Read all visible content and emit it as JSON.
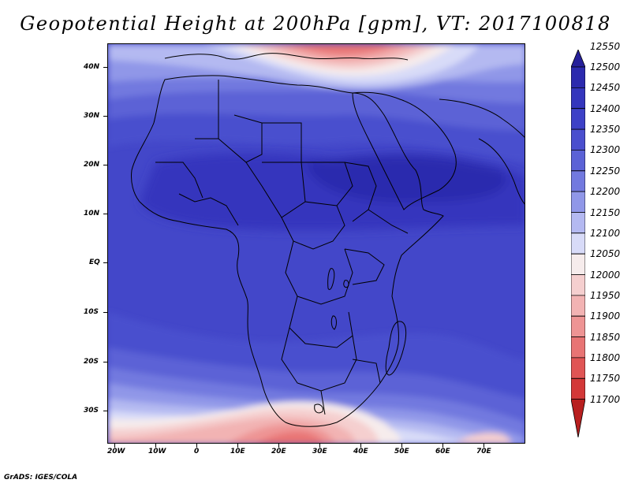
{
  "title": "Geopotential Height at 200hPa [gpm], VT: 2017100818",
  "credit": "GrADS: IGES/COLA",
  "lat_labels": [
    "40N",
    "30N",
    "20N",
    "10N",
    "EQ",
    "10S",
    "20S",
    "30S"
  ],
  "lon_labels": [
    "20W",
    "10W",
    "0",
    "10E",
    "20E",
    "30E",
    "40E",
    "50E",
    "60E",
    "70E"
  ],
  "colorbar": {
    "labels": [
      "12550",
      "12500",
      "12450",
      "12400",
      "12350",
      "12300",
      "12250",
      "12200",
      "12150",
      "12100",
      "12050",
      "12000",
      "11950",
      "11900",
      "11850",
      "11800",
      "11750",
      "11700"
    ],
    "colors": [
      "#26209a",
      "#2c2aae",
      "#3436bd",
      "#3d41c7",
      "#4a4fce",
      "#5b62d6",
      "#7279df",
      "#9097e8",
      "#b4b9f1",
      "#d8dbf8",
      "#f6ecec",
      "#f5cfcf",
      "#f2b3b3",
      "#ee9494",
      "#e87474",
      "#e05555",
      "#d33838",
      "#b81f1f"
    ]
  }
}
